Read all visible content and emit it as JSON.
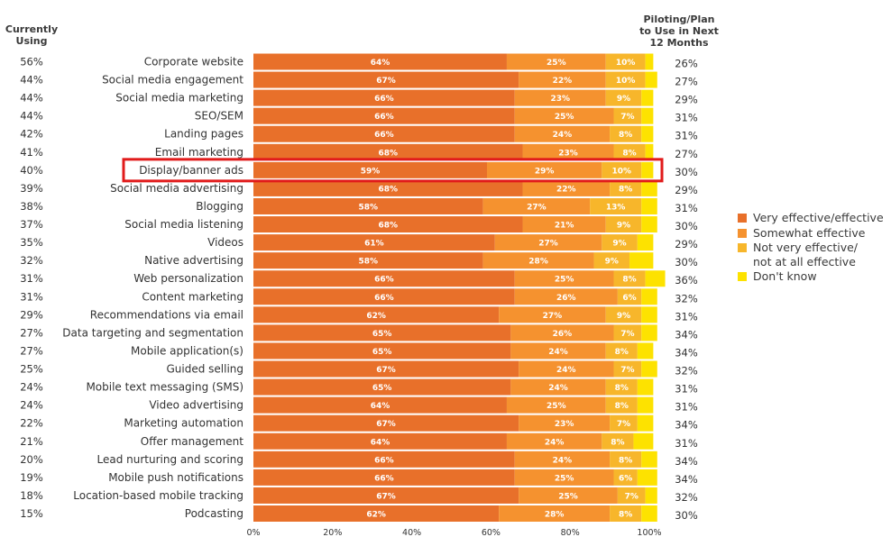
{
  "header_left": "Currently\nUsing",
  "header_right": "Piloting/Plan\nto Use in Next\n12 Months",
  "legend": [
    {
      "label": "Very effective/effective",
      "color": "#e8702a"
    },
    {
      "label": "Somewhat effective",
      "color": "#f5922f"
    },
    {
      "label": "Not very effective/\nnot at all effective",
      "color": "#f7b62b"
    },
    {
      "label": "Don't know",
      "color": "#fde200"
    }
  ],
  "highlight_color": "#e11b1b",
  "chart_data": {
    "type": "bar",
    "orientation": "horizontal",
    "stacked": true,
    "xlim": [
      0,
      100
    ],
    "xticks": [
      "0%",
      "20%",
      "40%",
      "60%",
      "80%",
      "100%"
    ],
    "highlighted_category": "Display/banner ads",
    "categories": [
      "Corporate website",
      "Social media engagement",
      "Social media marketing",
      "SEO/SEM",
      "Landing pages",
      "Email marketing",
      "Display/banner ads",
      "Social media advertising",
      "Blogging",
      "Social media listening",
      "Videos",
      "Native advertising",
      "Web personalization",
      "Content marketing",
      "Recommendations via email",
      "Data targeting and segmentation",
      "Mobile application(s)",
      "Guided selling",
      "Mobile text messaging (SMS)",
      "Video advertising",
      "Marketing automation",
      "Offer management",
      "Lead nurturing and scoring",
      "Mobile push notifications",
      "Location-based mobile tracking",
      "Podcasting"
    ],
    "currently_using": [
      "56%",
      "44%",
      "44%",
      "44%",
      "42%",
      "41%",
      "40%",
      "39%",
      "38%",
      "37%",
      "35%",
      "32%",
      "31%",
      "31%",
      "29%",
      "27%",
      "27%",
      "25%",
      "24%",
      "24%",
      "22%",
      "21%",
      "20%",
      "19%",
      "18%",
      "15%"
    ],
    "piloting_plan": [
      "26%",
      "27%",
      "29%",
      "31%",
      "31%",
      "27%",
      "30%",
      "29%",
      "31%",
      "30%",
      "29%",
      "30%",
      "36%",
      "32%",
      "31%",
      "34%",
      "34%",
      "32%",
      "31%",
      "31%",
      "34%",
      "31%",
      "34%",
      "34%",
      "32%",
      "30%"
    ],
    "series": [
      {
        "name": "Very effective/effective",
        "color": "#e8702a",
        "values": [
          64,
          67,
          66,
          66,
          66,
          68,
          59,
          68,
          58,
          68,
          61,
          58,
          66,
          66,
          62,
          65,
          65,
          67,
          65,
          64,
          67,
          64,
          66,
          66,
          67,
          62
        ]
      },
      {
        "name": "Somewhat effective",
        "color": "#f5922f",
        "values": [
          25,
          22,
          23,
          25,
          24,
          23,
          29,
          22,
          27,
          21,
          27,
          28,
          25,
          26,
          27,
          26,
          24,
          24,
          24,
          25,
          23,
          24,
          24,
          25,
          25,
          28
        ]
      },
      {
        "name": "Not very effective/not at all effective",
        "color": "#f7b62b",
        "values": [
          10,
          10,
          9,
          7,
          8,
          8,
          10,
          8,
          13,
          9,
          9,
          9,
          8,
          6,
          9,
          7,
          8,
          7,
          8,
          8,
          7,
          8,
          8,
          6,
          7,
          8
        ]
      },
      {
        "name": "Don't know",
        "color": "#fde200",
        "values": [
          2,
          3,
          3,
          3,
          3,
          2,
          3,
          4,
          4,
          4,
          4,
          6,
          5,
          4,
          4,
          4,
          4,
          4,
          4,
          4,
          4,
          5,
          4,
          5,
          3,
          4
        ]
      }
    ],
    "bar_labels": [
      [
        "64%",
        "25%",
        "10%",
        ""
      ],
      [
        "67%",
        "22%",
        "10%",
        ""
      ],
      [
        "66%",
        "23%",
        "9%",
        ""
      ],
      [
        "66%",
        "25%",
        "7%",
        ""
      ],
      [
        "66%",
        "24%",
        "8%",
        ""
      ],
      [
        "68%",
        "23%",
        "8%",
        ""
      ],
      [
        "59%",
        "29%",
        "10%",
        ""
      ],
      [
        "68%",
        "22%",
        "8%",
        ""
      ],
      [
        "58%",
        "27%",
        "13%",
        ""
      ],
      [
        "68%",
        "21%",
        "9%",
        ""
      ],
      [
        "61%",
        "27%",
        "9%",
        ""
      ],
      [
        "58%",
        "28%",
        "9%",
        ""
      ],
      [
        "66%",
        "25%",
        "8%",
        ""
      ],
      [
        "66%",
        "26%",
        "6%",
        ""
      ],
      [
        "62%",
        "27%",
        "9%",
        ""
      ],
      [
        "65%",
        "26%",
        "7%",
        ""
      ],
      [
        "65%",
        "24%",
        "8%",
        ""
      ],
      [
        "67%",
        "24%",
        "7%",
        ""
      ],
      [
        "65%",
        "24%",
        "8%",
        ""
      ],
      [
        "64%",
        "25%",
        "8%",
        ""
      ],
      [
        "67%",
        "23%",
        "7%",
        ""
      ],
      [
        "64%",
        "24%",
        "8%",
        ""
      ],
      [
        "66%",
        "24%",
        "8%",
        ""
      ],
      [
        "66%",
        "25%",
        "6%",
        ""
      ],
      [
        "67%",
        "25%",
        "7%",
        ""
      ],
      [
        "62%",
        "28%",
        "8%",
        ""
      ]
    ]
  }
}
